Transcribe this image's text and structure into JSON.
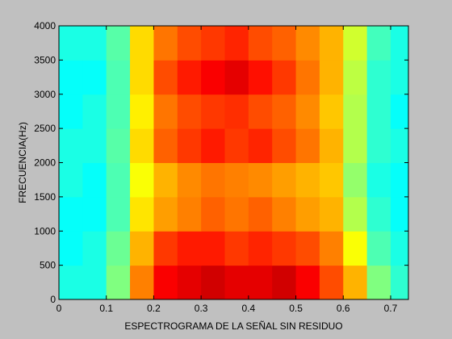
{
  "chart_data": {
    "type": "heatmap",
    "xlabel": "ESPECTROGRAMA DE LA SEÑAL SIN RESIDUO",
    "ylabel": "FRECUENCIA(Hz)",
    "colormap": "jet",
    "clim": [
      0,
      1
    ],
    "x": [
      0.025,
      0.075,
      0.125,
      0.175,
      0.225,
      0.275,
      0.325,
      0.375,
      0.425,
      0.475,
      0.525,
      0.575,
      0.625,
      0.675,
      0.725
    ],
    "y": [
      250,
      750,
      1250,
      1750,
      2250,
      2750,
      3250,
      3750
    ],
    "values": [
      [
        0.4,
        0.4,
        0.5,
        0.75,
        0.88,
        0.9,
        0.92,
        0.9,
        0.9,
        0.92,
        0.88,
        0.8,
        0.7,
        0.5,
        0.42
      ],
      [
        0.38,
        0.4,
        0.48,
        0.7,
        0.82,
        0.85,
        0.85,
        0.82,
        0.84,
        0.82,
        0.8,
        0.75,
        0.62,
        0.45,
        0.4
      ],
      [
        0.38,
        0.38,
        0.45,
        0.65,
        0.72,
        0.75,
        0.78,
        0.76,
        0.78,
        0.75,
        0.72,
        0.7,
        0.55,
        0.42,
        0.38
      ],
      [
        0.4,
        0.38,
        0.45,
        0.62,
        0.7,
        0.74,
        0.76,
        0.75,
        0.74,
        0.72,
        0.7,
        0.68,
        0.52,
        0.4,
        0.38
      ],
      [
        0.4,
        0.4,
        0.46,
        0.66,
        0.78,
        0.82,
        0.85,
        0.82,
        0.84,
        0.8,
        0.76,
        0.7,
        0.55,
        0.42,
        0.4
      ],
      [
        0.38,
        0.4,
        0.45,
        0.64,
        0.76,
        0.8,
        0.82,
        0.83,
        0.8,
        0.78,
        0.74,
        0.68,
        0.55,
        0.42,
        0.38
      ],
      [
        0.38,
        0.38,
        0.45,
        0.66,
        0.8,
        0.85,
        0.88,
        0.9,
        0.86,
        0.82,
        0.76,
        0.7,
        0.56,
        0.42,
        0.4
      ],
      [
        0.4,
        0.4,
        0.46,
        0.66,
        0.76,
        0.8,
        0.82,
        0.84,
        0.8,
        0.78,
        0.74,
        0.7,
        0.58,
        0.44,
        0.4
      ]
    ],
    "xlim": [
      0,
      0.7375
    ],
    "ylim": [
      0,
      4000
    ],
    "xticks": [
      0,
      0.1,
      0.2,
      0.3,
      0.4,
      0.5,
      0.6,
      0.7
    ],
    "yticks": [
      0,
      500,
      1000,
      1500,
      2000,
      2500,
      3000,
      3500,
      4000
    ]
  }
}
